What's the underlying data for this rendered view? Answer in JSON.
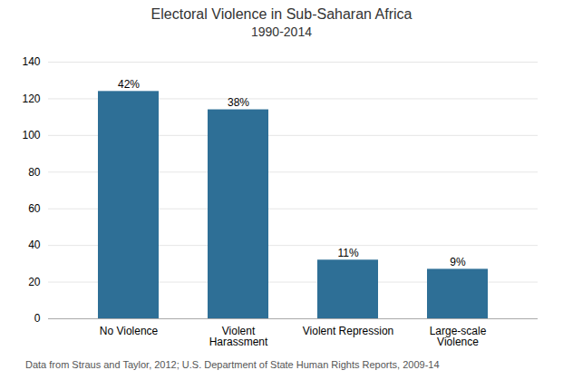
{
  "chart_data": {
    "type": "bar",
    "title": "Electoral Violence in Sub-Saharan Africa",
    "subtitle": "1990-2014",
    "categories": [
      "No Violence",
      "Violent\nHarassment",
      "Violent Repression",
      "Large-scale\nViolence"
    ],
    "values": [
      124,
      114,
      32,
      27
    ],
    "percentages": [
      "42%",
      "38%",
      "11%",
      "9%"
    ],
    "color": "#2e6f96",
    "ylim": [
      0,
      140
    ],
    "yticks": [
      0,
      20,
      40,
      60,
      80,
      100,
      120,
      140
    ],
    "grid": true,
    "caption": "Data from Straus and Taylor, 2012; U.S. Department of State Human Rights Reports, 2009-14"
  }
}
